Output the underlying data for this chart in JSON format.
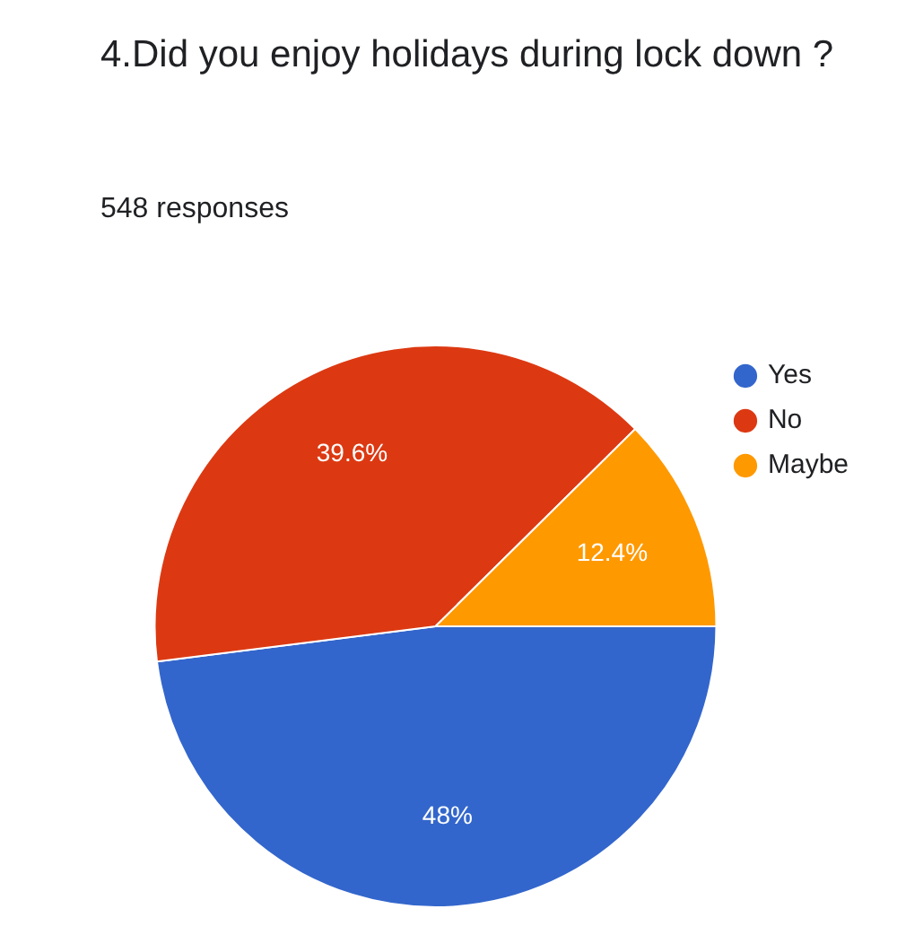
{
  "chart_data": {
    "type": "pie",
    "title": "4.Did you enjoy holidays during lock down ?",
    "subtitle": "548 responses",
    "categories": [
      "Yes",
      "No",
      "Maybe"
    ],
    "values": [
      48,
      39.6,
      12.4
    ],
    "colors": [
      "#3366cc",
      "#dc3912",
      "#ff9900"
    ],
    "value_labels": [
      "48%",
      "39.6%",
      "12.4%"
    ],
    "legend": "top right"
  }
}
